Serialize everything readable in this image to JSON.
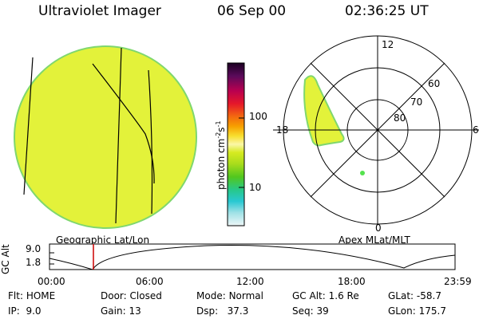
{
  "header": {
    "instrument": "Ultraviolet Imager",
    "date": "06 Sep 00",
    "time": "02:36:25 UT"
  },
  "colorbar": {
    "label": "photon cm",
    "label_sup1": "-2",
    "label_mid": "s",
    "label_sup2": "-1",
    "tick_100": "100",
    "tick_10": "10"
  },
  "polar_plot": {
    "mlt_12": "12",
    "mlt_18": "18",
    "mlt_6": "6",
    "mlt_0": "0",
    "lat_60": "60",
    "lat_70": "70",
    "lat_80": "80"
  },
  "labels": {
    "geo": "Geographic Lat/Lon",
    "apex": "Apex MLat/MLT"
  },
  "altitude_strip": {
    "ylabel": "GC Alt",
    "ytick_top": "9.0",
    "ytick_bottom": "1.8",
    "xticks": [
      "00:00",
      "06:00",
      "12:00",
      "18:00",
      "23:59"
    ]
  },
  "info": {
    "flt_label": "Flt:",
    "flt_value": "HOME",
    "ip_label": "IP:",
    "ip_value": "9.0",
    "door_label": "Door:",
    "door_value": "Closed",
    "gain_label": "Gain:",
    "gain_value": "13",
    "mode_label": "Mode:",
    "mode_value": "Normal",
    "dsp_label": "Dsp:",
    "dsp_value": "37.3",
    "gcalt_label": "GC Alt:",
    "gcalt_value": "1.6 Re",
    "seq_label": "Seq:",
    "seq_value": "39",
    "glat_label": "GLat:",
    "glat_value": "-58.7",
    "glon_label": "GLon:",
    "glon_value": "175.7"
  },
  "colors": {
    "image_fill": "#e3f23a",
    "image_edge": "#7fd76e",
    "marker": "#cc0000",
    "dot": "#55e24e"
  }
}
